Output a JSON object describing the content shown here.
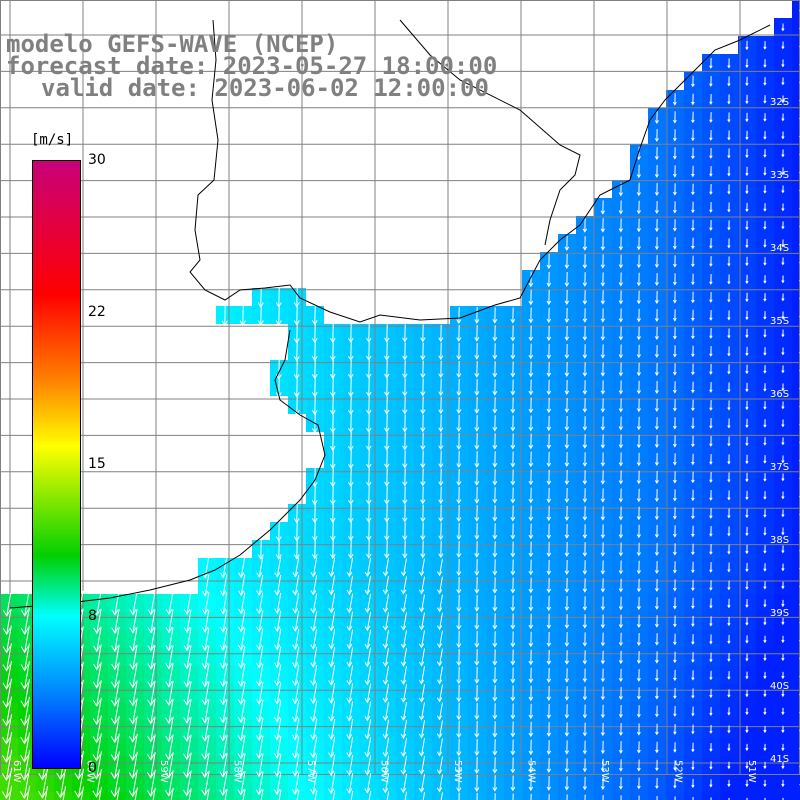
{
  "title": {
    "line1": "modelo GEFS-WAVE (NCEP)",
    "line2": "forecast date: 2023-05-27 18:00:00",
    "line3": "valid date: 2023-06-02 12:00:00"
  },
  "colorbar": {
    "unit": "[m/s]",
    "ticks": [
      "30",
      "22",
      "15",
      "8",
      "0"
    ],
    "min": 0,
    "max": 30
  },
  "lat_labels": [
    "32S",
    "33S",
    "34S",
    "35S",
    "36S",
    "37S",
    "38S",
    "39S",
    "40S",
    "41S"
  ],
  "lon_labels": [
    "61W",
    "60W",
    "59W",
    "58W",
    "57W",
    "56W",
    "55W",
    "54W",
    "53W",
    "52W",
    "51W"
  ],
  "colors": {
    "land": "#ffffff",
    "grid": "#808080",
    "coast": "#000000",
    "arrow": "#ffffff",
    "title": "#808080"
  }
}
